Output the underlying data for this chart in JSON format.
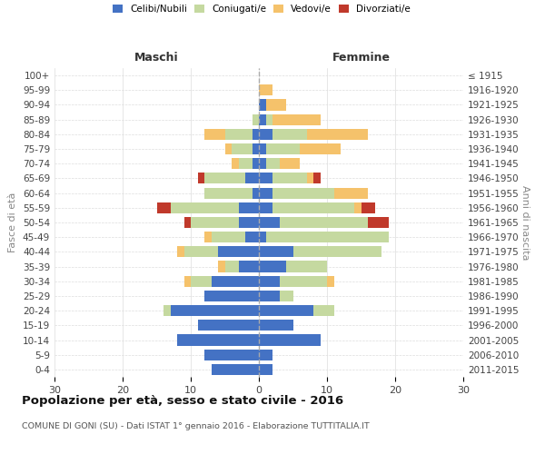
{
  "age_groups": [
    "0-4",
    "5-9",
    "10-14",
    "15-19",
    "20-24",
    "25-29",
    "30-34",
    "35-39",
    "40-44",
    "45-49",
    "50-54",
    "55-59",
    "60-64",
    "65-69",
    "70-74",
    "75-79",
    "80-84",
    "85-89",
    "90-94",
    "95-99",
    "100+"
  ],
  "birth_years": [
    "2011-2015",
    "2006-2010",
    "2001-2005",
    "1996-2000",
    "1991-1995",
    "1986-1990",
    "1981-1985",
    "1976-1980",
    "1971-1975",
    "1966-1970",
    "1961-1965",
    "1956-1960",
    "1951-1955",
    "1946-1950",
    "1941-1945",
    "1936-1940",
    "1931-1935",
    "1926-1930",
    "1921-1925",
    "1916-1920",
    "≤ 1915"
  ],
  "colors": {
    "celibi": "#4472c4",
    "coniugati": "#c5d9a0",
    "vedovi": "#f5c26b",
    "divorziati": "#c0392b"
  },
  "male": {
    "celibi": [
      7,
      8,
      12,
      9,
      13,
      8,
      7,
      3,
      6,
      2,
      3,
      3,
      1,
      2,
      1,
      1,
      1,
      0,
      0,
      0,
      0
    ],
    "coniugati": [
      0,
      0,
      0,
      0,
      1,
      0,
      3,
      2,
      5,
      5,
      7,
      10,
      7,
      6,
      2,
      3,
      4,
      1,
      0,
      0,
      0
    ],
    "vedovi": [
      0,
      0,
      0,
      0,
      0,
      0,
      1,
      1,
      1,
      1,
      0,
      0,
      0,
      0,
      1,
      1,
      3,
      0,
      0,
      0,
      0
    ],
    "divorziati": [
      0,
      0,
      0,
      0,
      0,
      0,
      0,
      0,
      0,
      0,
      1,
      2,
      0,
      1,
      0,
      0,
      0,
      0,
      0,
      0,
      0
    ]
  },
  "female": {
    "celibi": [
      2,
      2,
      9,
      5,
      8,
      3,
      3,
      4,
      5,
      1,
      3,
      2,
      2,
      2,
      1,
      1,
      2,
      1,
      1,
      0,
      0
    ],
    "coniugati": [
      0,
      0,
      0,
      0,
      3,
      2,
      7,
      6,
      13,
      18,
      13,
      12,
      9,
      5,
      2,
      5,
      5,
      1,
      0,
      0,
      0
    ],
    "vedovi": [
      0,
      0,
      0,
      0,
      0,
      0,
      1,
      0,
      0,
      0,
      0,
      1,
      5,
      1,
      3,
      6,
      9,
      7,
      3,
      2,
      0
    ],
    "divorziati": [
      0,
      0,
      0,
      0,
      0,
      0,
      0,
      0,
      0,
      0,
      3,
      2,
      0,
      1,
      0,
      0,
      0,
      0,
      0,
      0,
      0
    ]
  },
  "xlim": 30,
  "title": "Popolazione per età, sesso e stato civile - 2016",
  "subtitle": "COMUNE DI GONI (SU) - Dati ISTAT 1° gennaio 2016 - Elaborazione TUTTITALIA.IT",
  "ylabel_left": "Fasce di età",
  "ylabel_right": "Anni di nascita",
  "xlabel_left": "Maschi",
  "xlabel_right": "Femmine",
  "legend_labels": [
    "Celibi/Nubili",
    "Coniugati/e",
    "Vedovi/e",
    "Divorziati/e"
  ]
}
